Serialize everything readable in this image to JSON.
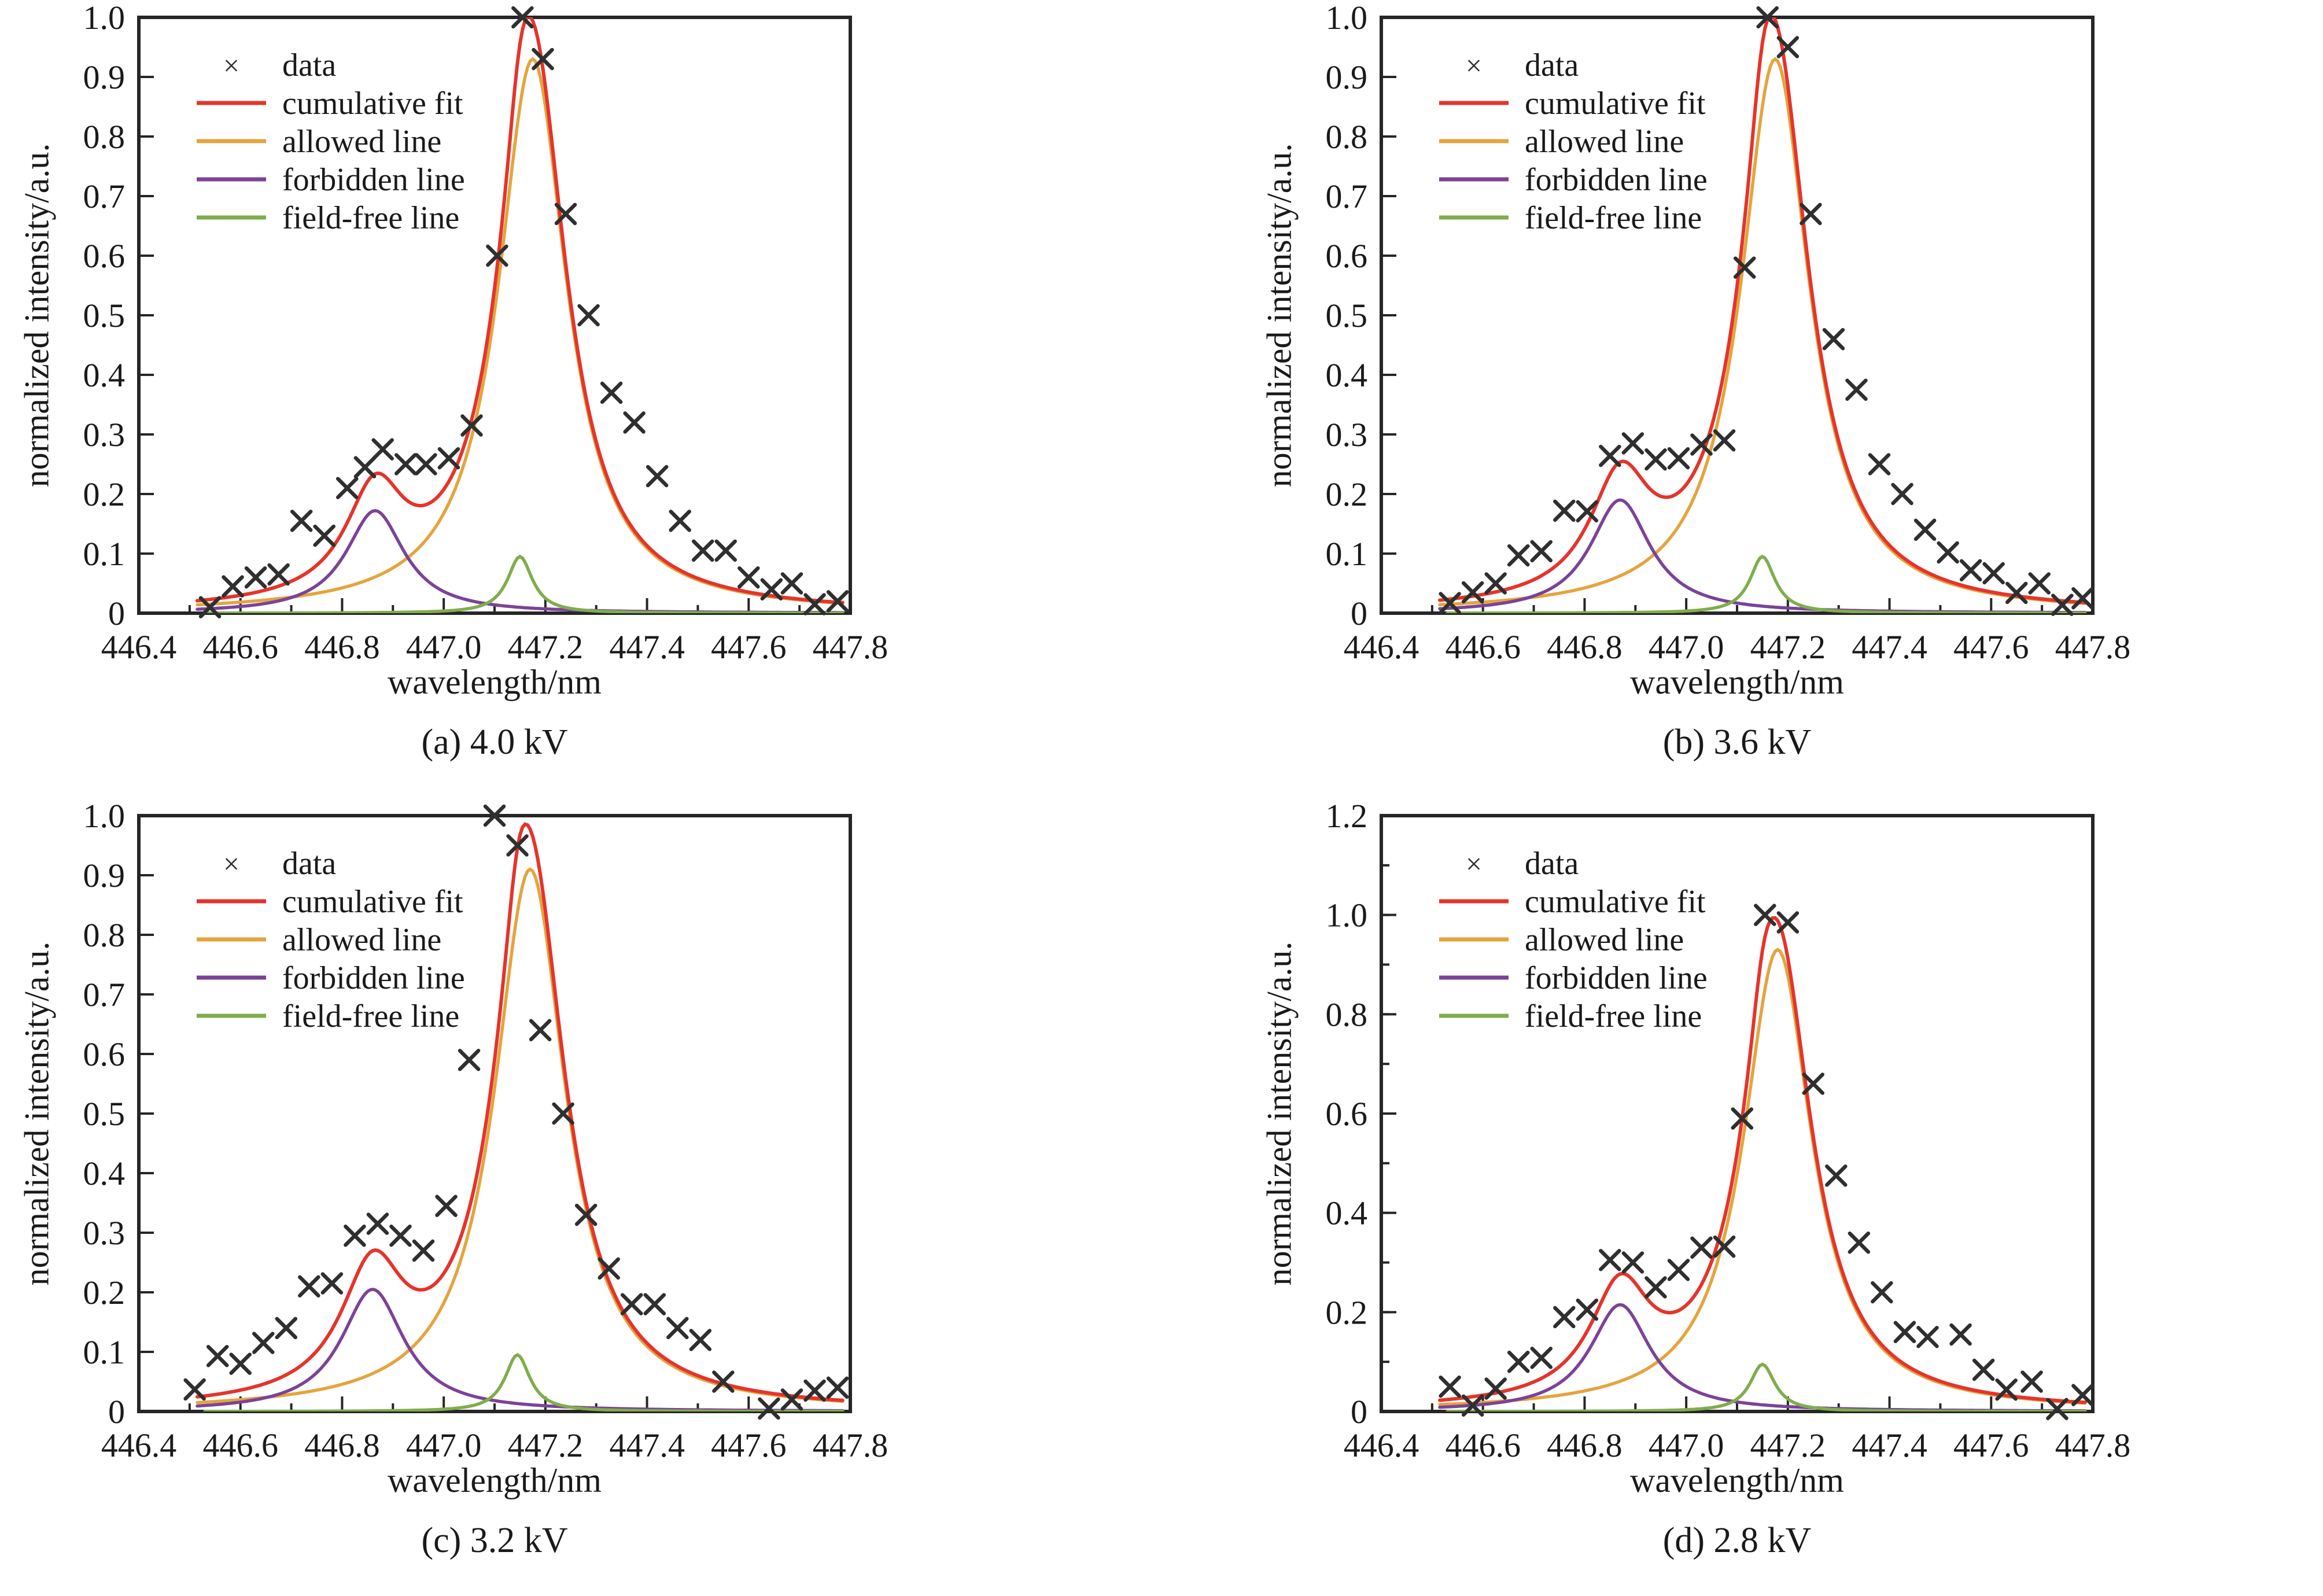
{
  "figure_title": "",
  "axes": {
    "xlabel": "wavelength/nm",
    "ylabel": "normalized intensity/a.u.",
    "xlim": [
      446.4,
      447.8
    ],
    "xtick_step": 0.2,
    "xtick_minor_step": 0.1
  },
  "legend": {
    "position": "upper-left",
    "items": [
      {
        "label": "data",
        "type": "marker",
        "marker": "x",
        "color": "#2f2f2f"
      },
      {
        "label": "cumulative fit",
        "type": "line",
        "color": "#e5342b"
      },
      {
        "label": "allowed line",
        "type": "line",
        "color": "#e4a43e"
      },
      {
        "label": "forbidden line",
        "type": "line",
        "color": "#7b4397"
      },
      {
        "label": "field-free line",
        "type": "line",
        "color": "#7fad4c"
      }
    ]
  },
  "colors": {
    "data": "#2f2f2f",
    "cumulative_fit": "#e5342b",
    "allowed_line": "#e4a43e",
    "forbidden_line": "#7b4397",
    "field_free_line": "#7fad4c",
    "frame": "#262626",
    "text": "#1a1a1a"
  },
  "chart_data": [
    {
      "id": "a",
      "type": "line",
      "caption": "(a) 4.0 kV",
      "ylim": [
        0,
        1.0
      ],
      "ytick_step": 0.1,
      "ytick_minor_step": null,
      "series": [
        {
          "name": "allowed line",
          "shape": "lorentzian",
          "center": 447.175,
          "amplitude": 0.93,
          "hwhm": 0.082
        },
        {
          "name": "forbidden line",
          "shape": "lorentzian",
          "center": 446.865,
          "amplitude": 0.172,
          "hwhm": 0.07
        },
        {
          "name": "field-free line",
          "shape": "lorentzian",
          "center": 447.15,
          "amplitude": 0.095,
          "hwhm": 0.03
        },
        {
          "name": "cumulative fit",
          "shape": "sum-of-components"
        }
      ],
      "data_points": {
        "x": [
          446.54,
          446.585,
          446.63,
          446.675,
          446.72,
          446.765,
          446.81,
          446.845,
          446.88,
          446.925,
          446.965,
          447.01,
          447.055,
          447.105,
          447.155,
          447.195,
          447.24,
          447.285,
          447.33,
          447.375,
          447.42,
          447.465,
          447.51,
          447.555,
          447.6,
          447.645,
          447.685,
          447.73,
          447.775
        ],
        "y": [
          0.01,
          0.045,
          0.06,
          0.065,
          0.155,
          0.13,
          0.21,
          0.245,
          0.275,
          0.25,
          0.25,
          0.26,
          0.315,
          0.6,
          1.0,
          0.93,
          0.67,
          0.5,
          0.37,
          0.32,
          0.23,
          0.155,
          0.105,
          0.105,
          0.06,
          0.04,
          0.05,
          0.015,
          0.02
        ]
      }
    },
    {
      "id": "b",
      "type": "line",
      "caption": "(b) 3.6 kV",
      "ylim": [
        0,
        1.0
      ],
      "ytick_step": 0.1,
      "ytick_minor_step": null,
      "series": [
        {
          "name": "allowed line",
          "shape": "lorentzian",
          "center": 447.175,
          "amplitude": 0.93,
          "hwhm": 0.082
        },
        {
          "name": "forbidden line",
          "shape": "lorentzian",
          "center": 446.87,
          "amplitude": 0.19,
          "hwhm": 0.072
        },
        {
          "name": "field-free line",
          "shape": "lorentzian",
          "center": 447.15,
          "amplitude": 0.095,
          "hwhm": 0.03
        },
        {
          "name": "cumulative fit",
          "shape": "sum-of-components"
        }
      ],
      "data_points": {
        "x": [
          446.535,
          446.58,
          446.625,
          446.67,
          446.715,
          446.76,
          446.805,
          446.85,
          446.895,
          446.94,
          446.985,
          447.03,
          447.075,
          447.115,
          447.16,
          447.2,
          447.245,
          447.29,
          447.335,
          447.38,
          447.425,
          447.47,
          447.515,
          447.56,
          447.605,
          447.65,
          447.695,
          447.74,
          447.78
        ],
        "y": [
          0.017,
          0.035,
          0.05,
          0.097,
          0.104,
          0.172,
          0.171,
          0.264,
          0.285,
          0.258,
          0.26,
          0.283,
          0.29,
          0.58,
          1.0,
          0.95,
          0.67,
          0.46,
          0.375,
          0.25,
          0.2,
          0.14,
          0.102,
          0.072,
          0.067,
          0.034,
          0.05,
          0.014,
          0.025
        ]
      }
    },
    {
      "id": "c",
      "type": "line",
      "caption": "(c) 3.2 kV",
      "ylim": [
        0,
        1.0
      ],
      "ytick_step": 0.1,
      "ytick_minor_step": null,
      "series": [
        {
          "name": "allowed line",
          "shape": "lorentzian",
          "center": 447.17,
          "amplitude": 0.91,
          "hwhm": 0.085
        },
        {
          "name": "forbidden line",
          "shape": "lorentzian",
          "center": 446.86,
          "amplitude": 0.205,
          "hwhm": 0.075
        },
        {
          "name": "field-free line",
          "shape": "lorentzian",
          "center": 447.145,
          "amplitude": 0.095,
          "hwhm": 0.03
        },
        {
          "name": "cumulative fit",
          "shape": "sum-of-components"
        }
      ],
      "data_points": {
        "x": [
          446.51,
          446.555,
          446.6,
          446.645,
          446.69,
          446.735,
          446.78,
          446.825,
          446.87,
          446.915,
          446.96,
          447.005,
          447.05,
          447.1,
          447.145,
          447.19,
          447.235,
          447.28,
          447.325,
          447.37,
          447.415,
          447.46,
          447.505,
          447.55,
          447.64,
          447.685,
          447.73,
          447.775
        ],
        "y": [
          0.037,
          0.093,
          0.08,
          0.115,
          0.14,
          0.21,
          0.215,
          0.295,
          0.315,
          0.295,
          0.27,
          0.345,
          0.59,
          1.0,
          0.95,
          0.64,
          0.5,
          0.33,
          0.24,
          0.18,
          0.18,
          0.14,
          0.12,
          0.05,
          0.005,
          0.02,
          0.035,
          0.04
        ]
      }
    },
    {
      "id": "d",
      "type": "line",
      "caption": "(d) 2.8 kV",
      "ylim": [
        0,
        1.2
      ],
      "ytick_step": 0.2,
      "ytick_minor_step": 0.1,
      "series": [
        {
          "name": "allowed line",
          "shape": "lorentzian",
          "center": 447.18,
          "amplitude": 0.93,
          "hwhm": 0.082
        },
        {
          "name": "forbidden line",
          "shape": "lorentzian",
          "center": 446.87,
          "amplitude": 0.215,
          "hwhm": 0.072
        },
        {
          "name": "field-free line",
          "shape": "lorentzian",
          "center": 447.15,
          "amplitude": 0.095,
          "hwhm": 0.03
        },
        {
          "name": "cumulative fit",
          "shape": "sum-of-components"
        }
      ],
      "data_points": {
        "x": [
          446.535,
          446.58,
          446.625,
          446.67,
          446.715,
          446.76,
          446.805,
          446.85,
          446.895,
          446.94,
          446.985,
          447.03,
          447.075,
          447.11,
          447.155,
          447.2,
          447.25,
          447.295,
          447.34,
          447.385,
          447.43,
          447.475,
          447.54,
          447.585,
          447.63,
          447.68,
          447.73,
          447.78
        ],
        "y": [
          0.05,
          0.012,
          0.046,
          0.1,
          0.108,
          0.19,
          0.205,
          0.305,
          0.3,
          0.25,
          0.285,
          0.33,
          0.332,
          0.59,
          1.0,
          0.985,
          0.66,
          0.475,
          0.34,
          0.24,
          0.16,
          0.15,
          0.155,
          0.084,
          0.044,
          0.06,
          0.005,
          0.033
        ]
      }
    }
  ]
}
